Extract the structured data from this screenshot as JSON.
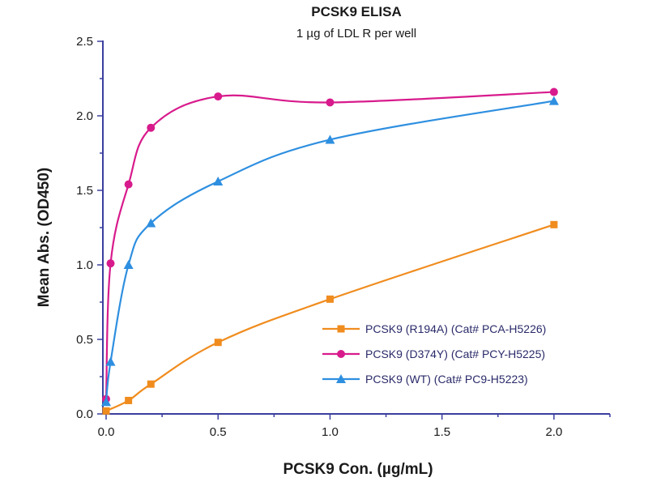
{
  "chart_data": {
    "type": "scatter",
    "title": "PCSK9 ELISA",
    "subtitle": "1 µg of LDL R per well",
    "xlabel": "PCSK9 Con. (µg/mL)",
    "ylabel": "Mean Abs. (OD450)",
    "xlim": [
      0,
      2.25
    ],
    "ylim": [
      0,
      2.5
    ],
    "x_ticks": [
      "0.0",
      "0.5",
      "1.0",
      "1.5",
      "2.0"
    ],
    "x_tick_values": [
      0,
      0.5,
      1.0,
      1.5,
      2.0
    ],
    "y_ticks": [
      "0.0",
      "0.5",
      "1.0",
      "1.5",
      "2.0",
      "2.5"
    ],
    "y_tick_values": [
      0,
      0.5,
      1.0,
      1.5,
      2.0,
      2.5
    ],
    "grid": false,
    "legend_position": "bottom-right",
    "series": [
      {
        "name": "PCSK9 (R194A) (Cat# PCA-H5226)",
        "color": "#f08c1e",
        "marker": "square",
        "x": [
          0.0,
          0.1,
          0.2,
          0.5,
          1.0,
          2.0
        ],
        "y": [
          0.02,
          0.09,
          0.2,
          0.48,
          0.77,
          1.27
        ]
      },
      {
        "name": "PCSK9 (D374Y) (Cat# PCY-H5225)",
        "color": "#d81b8c",
        "marker": "circle",
        "x": [
          0.0,
          0.02,
          0.1,
          0.2,
          0.5,
          1.0,
          2.0
        ],
        "y": [
          0.1,
          1.01,
          1.54,
          1.92,
          2.13,
          2.09,
          2.16
        ]
      },
      {
        "name": "PCSK9 (WT) (Cat# PC9-H5223)",
        "color": "#2e8fe0",
        "marker": "triangle",
        "x": [
          0.0,
          0.02,
          0.1,
          0.2,
          0.5,
          1.0,
          2.0
        ],
        "y": [
          0.08,
          0.35,
          1.0,
          1.28,
          1.56,
          1.84,
          2.1
        ]
      }
    ]
  }
}
